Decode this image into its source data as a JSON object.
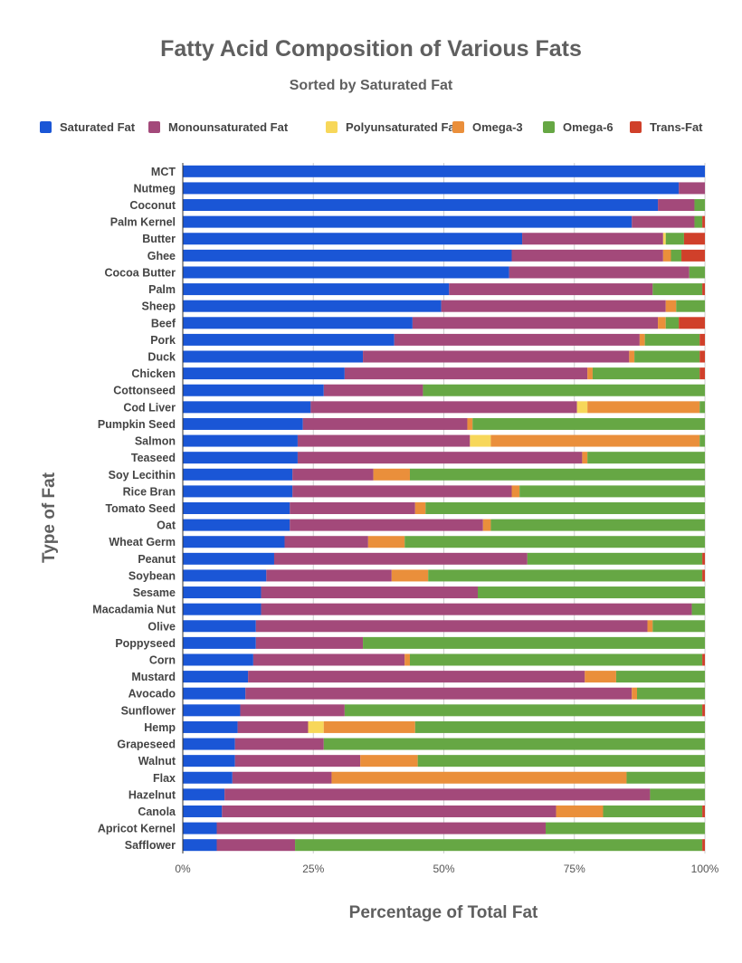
{
  "chart_data": {
    "type": "bar",
    "orientation": "horizontal",
    "stacked": true,
    "title": "Fatty Acid Composition of Various Fats",
    "subtitle": "Sorted by Saturated Fat",
    "xlabel": "Percentage of Total Fat",
    "ylabel": "Type of Fat",
    "xlim": [
      0,
      100
    ],
    "x_ticks": [
      "0%",
      "25%",
      "50%",
      "75%",
      "100%"
    ],
    "grid": true,
    "legend_position": "top",
    "categories": [
      "MCT",
      "Nutmeg",
      "Coconut",
      "Palm Kernel",
      "Butter",
      "Ghee",
      "Cocoa Butter",
      "Palm",
      "Sheep",
      "Beef",
      "Pork",
      "Duck",
      "Chicken",
      "Cottonseed",
      "Cod Liver",
      "Pumpkin Seed",
      "Salmon",
      "Teaseed",
      "Soy Lecithin",
      "Rice Bran",
      "Tomato Seed",
      "Oat",
      "Wheat Germ",
      "Peanut",
      "Soybean",
      "Sesame",
      "Macadamia Nut",
      "Olive",
      "Poppyseed",
      "Corn",
      "Mustard",
      "Avocado",
      "Sunflower",
      "Hemp",
      "Grapeseed",
      "Walnut",
      "Flax",
      "Hazelnut",
      "Canola",
      "Apricot Kernel",
      "Safflower"
    ],
    "series": [
      {
        "name": "Saturated Fat",
        "color": "#1a56d6",
        "values": [
          100,
          95,
          91,
          86,
          65,
          63,
          62.5,
          51,
          49.5,
          44,
          40.5,
          34.5,
          31,
          27,
          24.5,
          23,
          22,
          22,
          21,
          21,
          20.5,
          20.5,
          19.5,
          17.5,
          16,
          15,
          15,
          14,
          14,
          13.5,
          12.5,
          12,
          11,
          10.5,
          10,
          10,
          9.5,
          8,
          7.5,
          6.5,
          6.5
        ]
      },
      {
        "name": "Monounsaturated Fat",
        "color": "#a3497a",
        "values": [
          0,
          5,
          7,
          12,
          27,
          29,
          34.5,
          39,
          43,
          47,
          47,
          51,
          46.5,
          19,
          51,
          31.5,
          33,
          54.5,
          15.5,
          42,
          24,
          37,
          16,
          48.5,
          24,
          41.5,
          82.5,
          75,
          20.5,
          29,
          64.5,
          74,
          20,
          13.5,
          17,
          24,
          19,
          81.5,
          64,
          63,
          15
        ]
      },
      {
        "name": "Polyunsaturated Fat",
        "color": "#f7d75a",
        "values": [
          0,
          0,
          0,
          0,
          0.5,
          0,
          0,
          0,
          0,
          0,
          0,
          0,
          0,
          0,
          2,
          0,
          4,
          0,
          0,
          0,
          0,
          0,
          0,
          0,
          0,
          0,
          0,
          0,
          0,
          0,
          0,
          0,
          0,
          3,
          0,
          0,
          0,
          0,
          0,
          0,
          0
        ]
      },
      {
        "name": "Omega-3",
        "color": "#ea8f3b",
        "values": [
          0,
          0,
          0,
          0,
          0,
          1.5,
          0,
          0,
          2,
          1.5,
          1,
          1,
          1,
          0,
          21.5,
          1,
          40,
          1,
          7,
          1.5,
          2,
          1.5,
          7,
          0,
          7,
          0,
          0,
          1,
          0,
          1,
          6,
          1,
          0,
          17.5,
          0,
          11,
          56.5,
          0,
          9,
          0,
          0
        ]
      },
      {
        "name": "Omega-6",
        "color": "#66a744",
        "values": [
          0,
          0,
          2,
          1.5,
          3.5,
          2,
          3,
          9.5,
          5.5,
          2.5,
          10.5,
          12.5,
          20.5,
          54,
          1,
          44.5,
          1.5,
          22.5,
          56.5,
          35.5,
          53.5,
          41,
          57.5,
          33.5,
          52.5,
          43.5,
          2.5,
          10,
          65.5,
          56,
          17,
          13,
          68.5,
          55.5,
          73,
          55,
          15,
          10.5,
          19,
          30.5,
          78
        ]
      },
      {
        "name": "Trans-Fat",
        "color": "#d0402a",
        "values": [
          0,
          0,
          0,
          0.5,
          4,
          4.5,
          0,
          0.5,
          0,
          5,
          1,
          1,
          1,
          0,
          0,
          0,
          0,
          0,
          0,
          0,
          0,
          0,
          0,
          0.5,
          0.5,
          0,
          0,
          0,
          0,
          0.5,
          0,
          0,
          0.5,
          0,
          0,
          0,
          0,
          0,
          0.5,
          0,
          0.5
        ]
      }
    ]
  }
}
